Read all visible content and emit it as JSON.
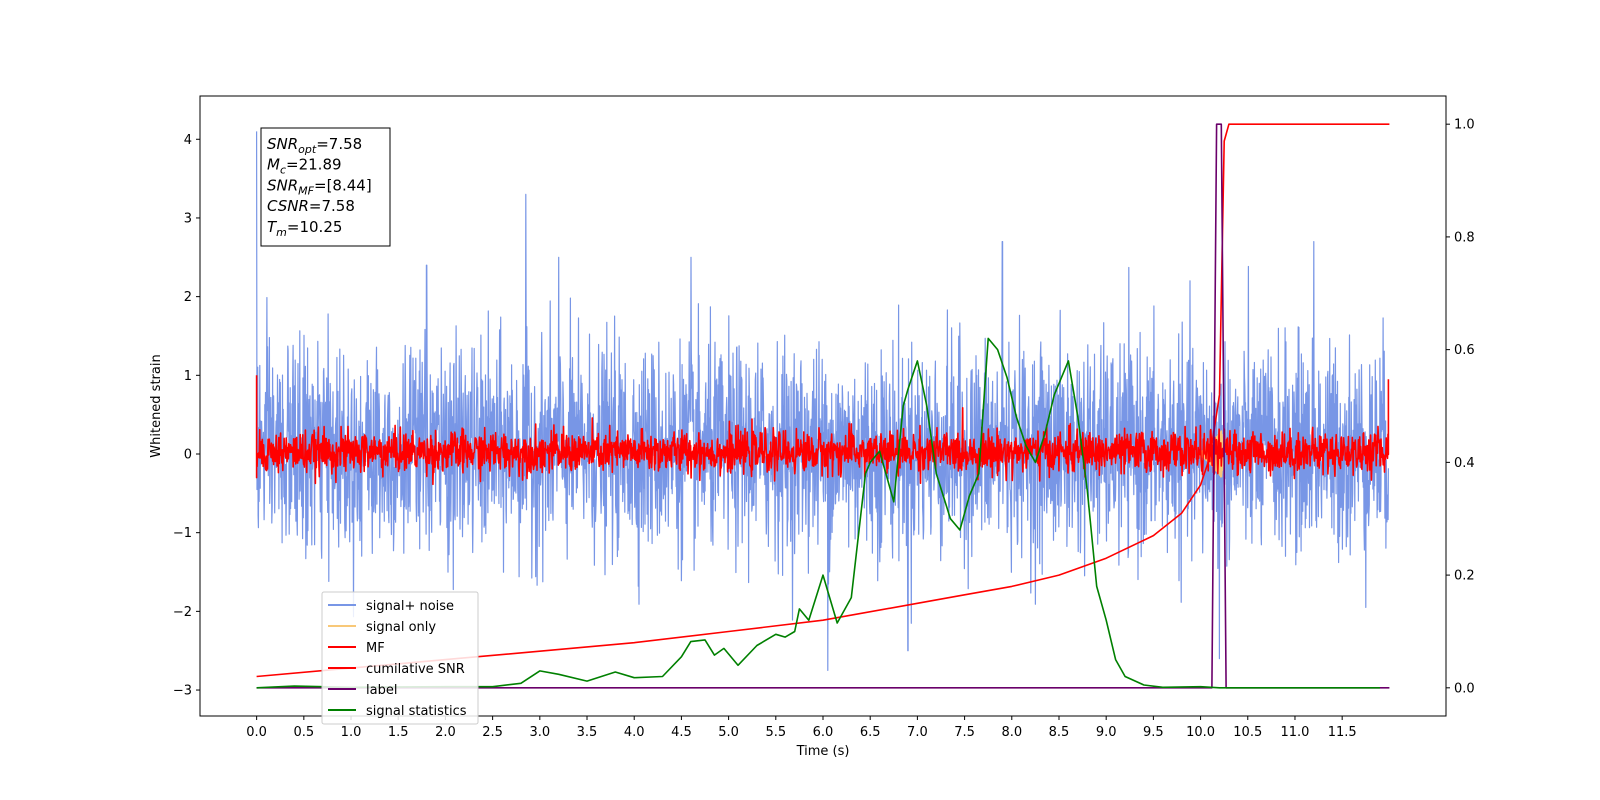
{
  "chart_data": {
    "type": "line",
    "xlabel": "Time (s)",
    "ylabel": "Whitened strain",
    "xlim": [
      -0.6,
      12.6
    ],
    "ylim": [
      -3.33,
      4.55
    ],
    "ylim_right": [
      -0.05,
      1.05
    ],
    "x_ticks": [
      0.0,
      0.5,
      1.0,
      1.5,
      2.0,
      2.5,
      3.0,
      3.5,
      4.0,
      4.5,
      5.0,
      5.5,
      6.0,
      6.5,
      7.0,
      7.5,
      8.0,
      8.5,
      9.0,
      9.5,
      10.0,
      10.5,
      11.0,
      11.5
    ],
    "x_tick_labels": [
      "0.0",
      "0.5",
      "1.0",
      "1.5",
      "2.0",
      "2.5",
      "3.0",
      "3.5",
      "4.0",
      "4.5",
      "5.0",
      "5.5",
      "6.0",
      "6.5",
      "7.0",
      "7.5",
      "8.0",
      "8.5",
      "9.0",
      "9.5",
      "10.0",
      "10.5",
      "11.0",
      "11.5"
    ],
    "y_ticks": [
      -3,
      -2,
      -1,
      0,
      1,
      2,
      3,
      4
    ],
    "y_tick_labels": [
      "−3",
      "−2",
      "−1",
      "0",
      "1",
      "2",
      "3",
      "4"
    ],
    "y_right_ticks": [
      0.0,
      0.2,
      0.4,
      0.6,
      0.8,
      1.0
    ],
    "y_right_tick_labels": [
      "0.0",
      "0.2",
      "0.4",
      "0.6",
      "0.8",
      "1.0"
    ],
    "grid": false,
    "legend_placement": "lower-left",
    "annotation": [
      {
        "base": "SNR",
        "sub": "opt",
        "rest": "=7.58"
      },
      {
        "base": "M",
        "sub": "c",
        "rest": "=21.89"
      },
      {
        "base": "SNR",
        "sub": "MF",
        "rest": "=[8.44]"
      },
      {
        "base": "CSNR",
        "sub": "",
        "rest": "=7.58"
      },
      {
        "base": "T",
        "sub": "m",
        "rest": "=10.25"
      }
    ],
    "series": [
      {
        "name": "signal+ noise",
        "color": "#7896e6",
        "axis": "left",
        "style": "noise",
        "x_range": [
          0.0,
          11.99
        ],
        "typical_band": [
          -1.0,
          1.1
        ],
        "peaks": [
          [
            0.0,
            4.1
          ],
          [
            2.85,
            3.3
          ],
          [
            1.8,
            2.4
          ],
          [
            3.2,
            2.5
          ],
          [
            4.6,
            2.5
          ],
          [
            7.9,
            2.7
          ],
          [
            11.2,
            2.7
          ],
          [
            6.05,
            -2.75
          ],
          [
            6.9,
            -2.5
          ],
          [
            10.2,
            -2.6
          ]
        ]
      },
      {
        "name": "signal only",
        "color": "#f8c878",
        "axis": "left",
        "style": "chirp",
        "x_range": [
          9.95,
          10.25
        ],
        "amplitude": 0.35
      },
      {
        "name": "MF",
        "color": "#ff0000",
        "axis": "left",
        "style": "mf",
        "x_range": [
          0.0,
          11.99
        ],
        "band": [
          -0.15,
          0.2
        ],
        "spikes": [
          [
            0.0,
            1.0
          ],
          [
            0.0,
            -0.3
          ],
          [
            11.99,
            0.95
          ]
        ]
      },
      {
        "name": "cumilative SNR",
        "color": "#ff0000",
        "axis": "right",
        "x": [
          0.0,
          1.0,
          2.0,
          3.0,
          4.0,
          5.0,
          6.0,
          7.0,
          7.5,
          8.0,
          8.5,
          9.0,
          9.5,
          9.8,
          10.0,
          10.1,
          10.2,
          10.25,
          10.3,
          12.0
        ],
        "y": [
          0.02,
          0.035,
          0.05,
          0.065,
          0.08,
          0.1,
          0.12,
          0.15,
          0.165,
          0.18,
          0.2,
          0.23,
          0.27,
          0.31,
          0.36,
          0.41,
          0.52,
          0.97,
          1.0,
          1.0
        ]
      },
      {
        "name": "label",
        "color": "#6a006a",
        "axis": "right",
        "x": [
          0.0,
          10.12,
          10.17,
          10.22,
          10.27,
          12.0
        ],
        "y": [
          0.0,
          0.0,
          1.0,
          1.0,
          0.0,
          0.0
        ]
      },
      {
        "name": "signal statistics",
        "color": "#008000",
        "axis": "right",
        "x": [
          0.0,
          0.4,
          1.0,
          2.0,
          2.5,
          2.8,
          3.0,
          3.2,
          3.5,
          3.8,
          4.0,
          4.3,
          4.5,
          4.6,
          4.75,
          4.85,
          4.95,
          5.0,
          5.1,
          5.3,
          5.5,
          5.6,
          5.7,
          5.75,
          5.85,
          6.0,
          6.15,
          6.3,
          6.45,
          6.5,
          6.6,
          6.75,
          6.85,
          6.9,
          7.0,
          7.1,
          7.2,
          7.35,
          7.45,
          7.55,
          7.65,
          7.75,
          7.85,
          7.95,
          8.05,
          8.15,
          8.25,
          8.35,
          8.45,
          8.6,
          8.7,
          8.8,
          8.9,
          9.0,
          9.1,
          9.2,
          9.4,
          9.6,
          10.0,
          10.2,
          10.5,
          11.0,
          11.9
        ],
        "y": [
          0.0,
          0.003,
          0.001,
          0.002,
          0.002,
          0.008,
          0.03,
          0.024,
          0.012,
          0.028,
          0.018,
          0.02,
          0.055,
          0.082,
          0.085,
          0.058,
          0.07,
          0.06,
          0.04,
          0.075,
          0.095,
          0.09,
          0.1,
          0.14,
          0.12,
          0.2,
          0.115,
          0.16,
          0.38,
          0.4,
          0.42,
          0.33,
          0.5,
          0.53,
          0.58,
          0.5,
          0.38,
          0.3,
          0.28,
          0.34,
          0.38,
          0.62,
          0.6,
          0.55,
          0.48,
          0.43,
          0.4,
          0.45,
          0.52,
          0.58,
          0.48,
          0.35,
          0.18,
          0.12,
          0.05,
          0.02,
          0.005,
          0.001,
          0.002,
          0.0,
          0.0,
          0.0,
          0.0
        ]
      }
    ]
  }
}
